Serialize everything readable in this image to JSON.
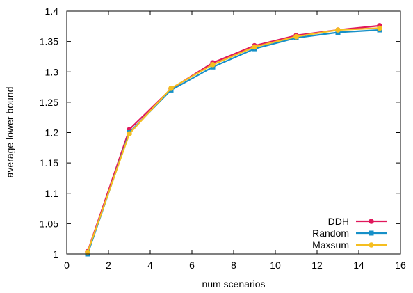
{
  "chart_data": {
    "type": "line",
    "xlabel": "num scenarios",
    "ylabel": "average lower bound",
    "xlim": [
      0,
      16
    ],
    "ylim": [
      1,
      1.4
    ],
    "xticks": [
      "0",
      "2",
      "4",
      "6",
      "8",
      "10",
      "12",
      "14",
      "16"
    ],
    "yticks": [
      "1",
      "1.05",
      "1.1",
      "1.15",
      "1.2",
      "1.25",
      "1.3",
      "1.35",
      "1.4"
    ],
    "legend_position": "bottom-right",
    "grid": false,
    "x": [
      1,
      3,
      5,
      7,
      9,
      11,
      13,
      15
    ],
    "series": [
      {
        "name": "DDH",
        "color": "#e0185c",
        "marker": "circle",
        "values": [
          1.004,
          1.205,
          1.272,
          1.315,
          1.343,
          1.36,
          1.369,
          1.376
        ]
      },
      {
        "name": "Random",
        "color": "#1690c8",
        "marker": "square",
        "values": [
          1.0,
          1.2,
          1.27,
          1.308,
          1.338,
          1.356,
          1.365,
          1.369
        ]
      },
      {
        "name": "Maxsum",
        "color": "#f5be20",
        "marker": "circle",
        "values": [
          1.003,
          1.198,
          1.273,
          1.312,
          1.341,
          1.358,
          1.369,
          1.372
        ]
      }
    ]
  }
}
